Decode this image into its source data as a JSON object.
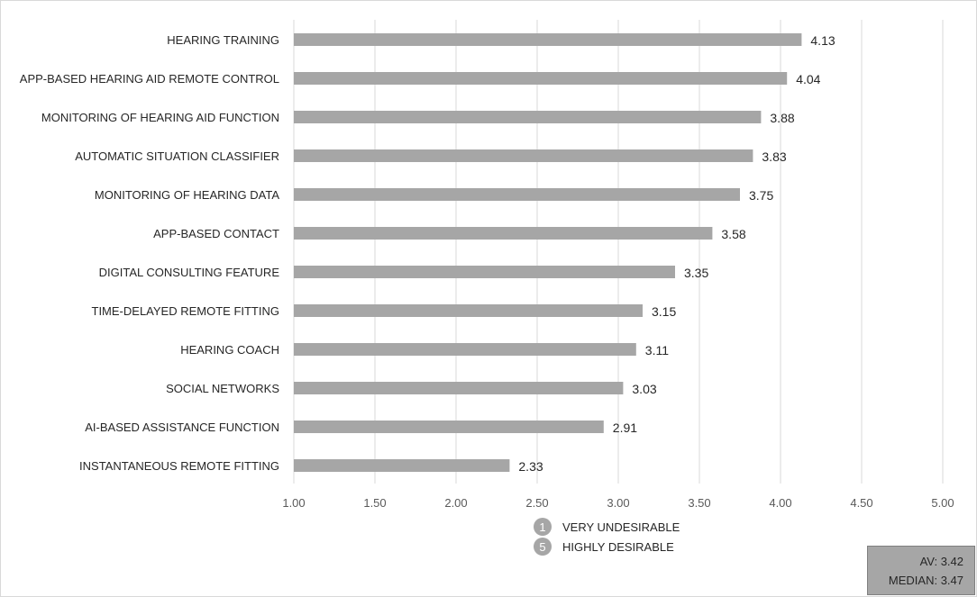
{
  "chart_data": {
    "type": "bar",
    "orientation": "horizontal",
    "categories": [
      "HEARING TRAINING",
      "APP-BASED HEARING AID REMOTE CONTROL",
      "MONITORING OF HEARING AID FUNCTION",
      "AUTOMATIC SITUATION CLASSIFIER",
      "MONITORING OF HEARING DATA",
      "APP-BASED CONTACT",
      "DIGITAL CONSULTING FEATURE",
      "TIME-DELAYED REMOTE FITTING",
      "HEARING COACH",
      "SOCIAL NETWORKS",
      "AI-BASED ASSISTANCE FUNCTION",
      "INSTANTANEOUS REMOTE FITTING"
    ],
    "values": [
      4.13,
      4.04,
      3.88,
      3.83,
      3.75,
      3.58,
      3.35,
      3.15,
      3.11,
      3.03,
      2.91,
      2.33
    ],
    "value_labels": [
      "4.13",
      "4.04",
      "3.88",
      "3.83",
      "3.75",
      "3.58",
      "3.35",
      "3.15",
      "3.11",
      "3.03",
      "2.91",
      "2.33"
    ],
    "xlim": [
      1.0,
      5.0
    ],
    "xticks": [
      "1.00",
      "1.50",
      "2.00",
      "2.50",
      "3.00",
      "3.50",
      "4.00",
      "4.50",
      "5.00"
    ],
    "grid": "vertical",
    "bar_color": "#a6a6a6",
    "legend": [
      {
        "symbol": "1",
        "label": "VERY UNDESIRABLE"
      },
      {
        "symbol": "5",
        "label": "HIGHLY DESIRABLE"
      }
    ],
    "stats": {
      "average": "AV: 3.42",
      "median": "MEDIAN: 3.47"
    }
  }
}
